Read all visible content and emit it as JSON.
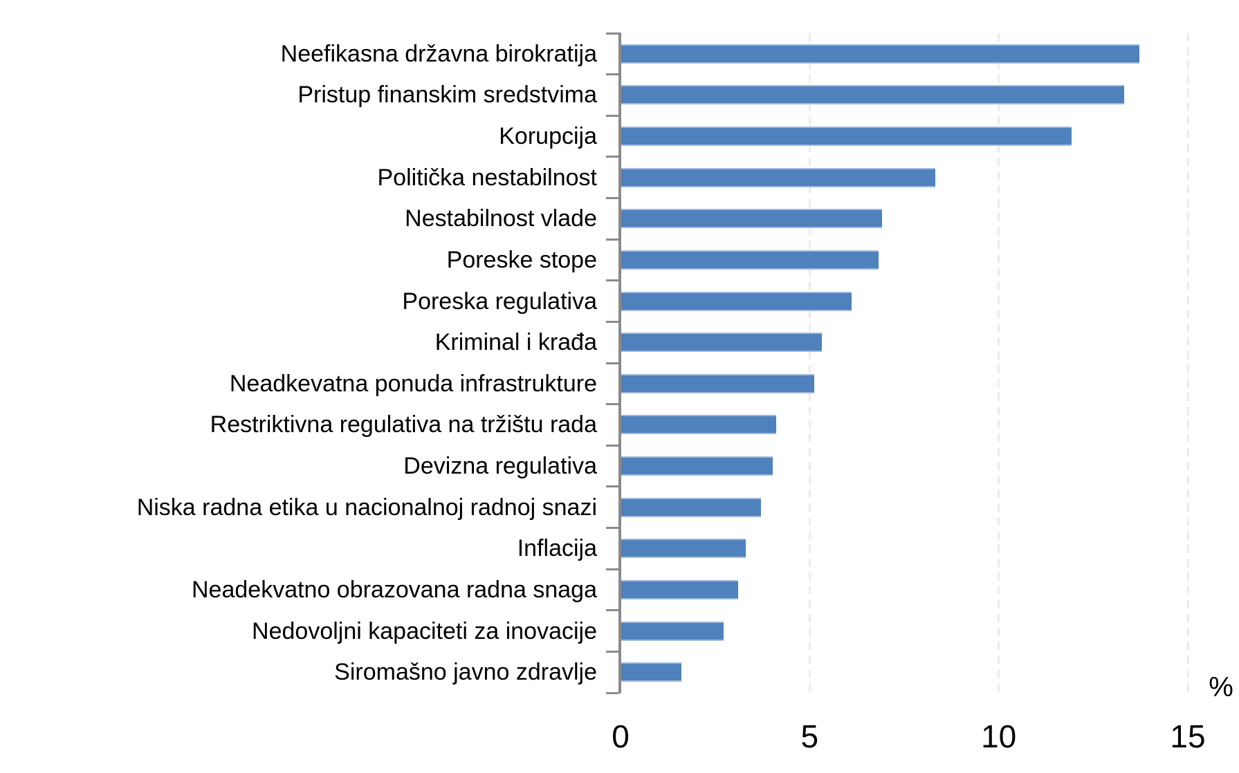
{
  "chart_data": {
    "type": "bar",
    "orientation": "horizontal",
    "title": "",
    "xlabel": "%",
    "ylabel": "",
    "xlim": [
      0,
      15
    ],
    "x_ticks": [
      0,
      5,
      10,
      15
    ],
    "grid": "vertical-dashed-at-5-10-15",
    "legend": "none",
    "bar_color": "#4F81BD",
    "bar_edge_color": "#9fbada",
    "axis_color": "#8a8a8a",
    "gridline_color": "#ebebeb",
    "categories": [
      "Neefikasna državna birokratija",
      "Pristup finanskim sredstvima",
      "Korupcija",
      "Politička nestabilnost",
      "Nestabilnost vlade",
      "Poreske stope",
      "Poreska regulativa",
      "Kriminal i krađa",
      "Neadkevatna ponuda infrastrukture",
      "Restriktivna regulativa na tržištu rada",
      "Devizna regulativa",
      "Niska radna etika u nacionalnoj radnoj snazi",
      "Inflacija",
      "Neadekvatno obrazovana radna snaga",
      "Nedovoljni kapaciteti za inovacije",
      "Siromašno javno zdravlje"
    ],
    "values": [
      13.7,
      13.3,
      11.9,
      8.3,
      6.9,
      6.8,
      6.1,
      5.3,
      5.1,
      4.1,
      4.0,
      3.7,
      3.3,
      3.1,
      2.7,
      1.6
    ]
  }
}
